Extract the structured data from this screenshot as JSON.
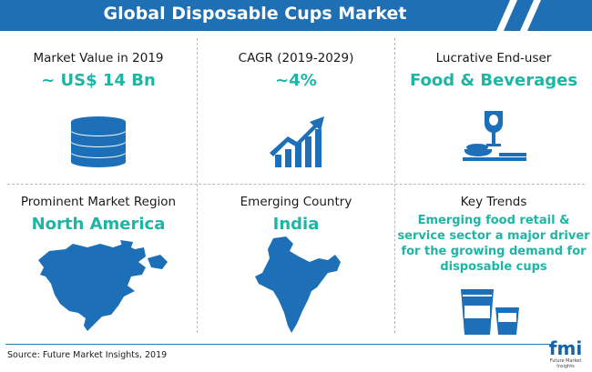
{
  "title": "Global Disposable Cups Market",
  "colors": {
    "header_blue": "#1e6fb3",
    "accent_teal": "#1fb5a5",
    "icon_blue": "#1d6fb8"
  },
  "cells": {
    "market_value": {
      "label": "Market Value in 2019",
      "value": "~ US$ 14 Bn",
      "icon": "coins-stack-icon"
    },
    "cagr": {
      "label": "CAGR (2019-2029)",
      "value": "~4%",
      "icon": "growth-chart-icon"
    },
    "end_user": {
      "label": "Lucrative End-user",
      "value": "Food & Beverages",
      "icon": "food-beverage-icon"
    },
    "region": {
      "label": "Prominent Market Region",
      "value": "North America",
      "icon": "north-america-map-icon"
    },
    "country": {
      "label": "Emerging Country",
      "value": "India",
      "icon": "india-map-icon"
    },
    "trends": {
      "label": "Key Trends",
      "value": "Emerging food retail & service sector a major driver for the growing demand for disposable cups",
      "icon": "disposable-cups-icon"
    }
  },
  "footer": {
    "source": "Source: Future Market Insights, 2019",
    "logo": "fmi",
    "logo_sub": "Future Market Insights"
  }
}
